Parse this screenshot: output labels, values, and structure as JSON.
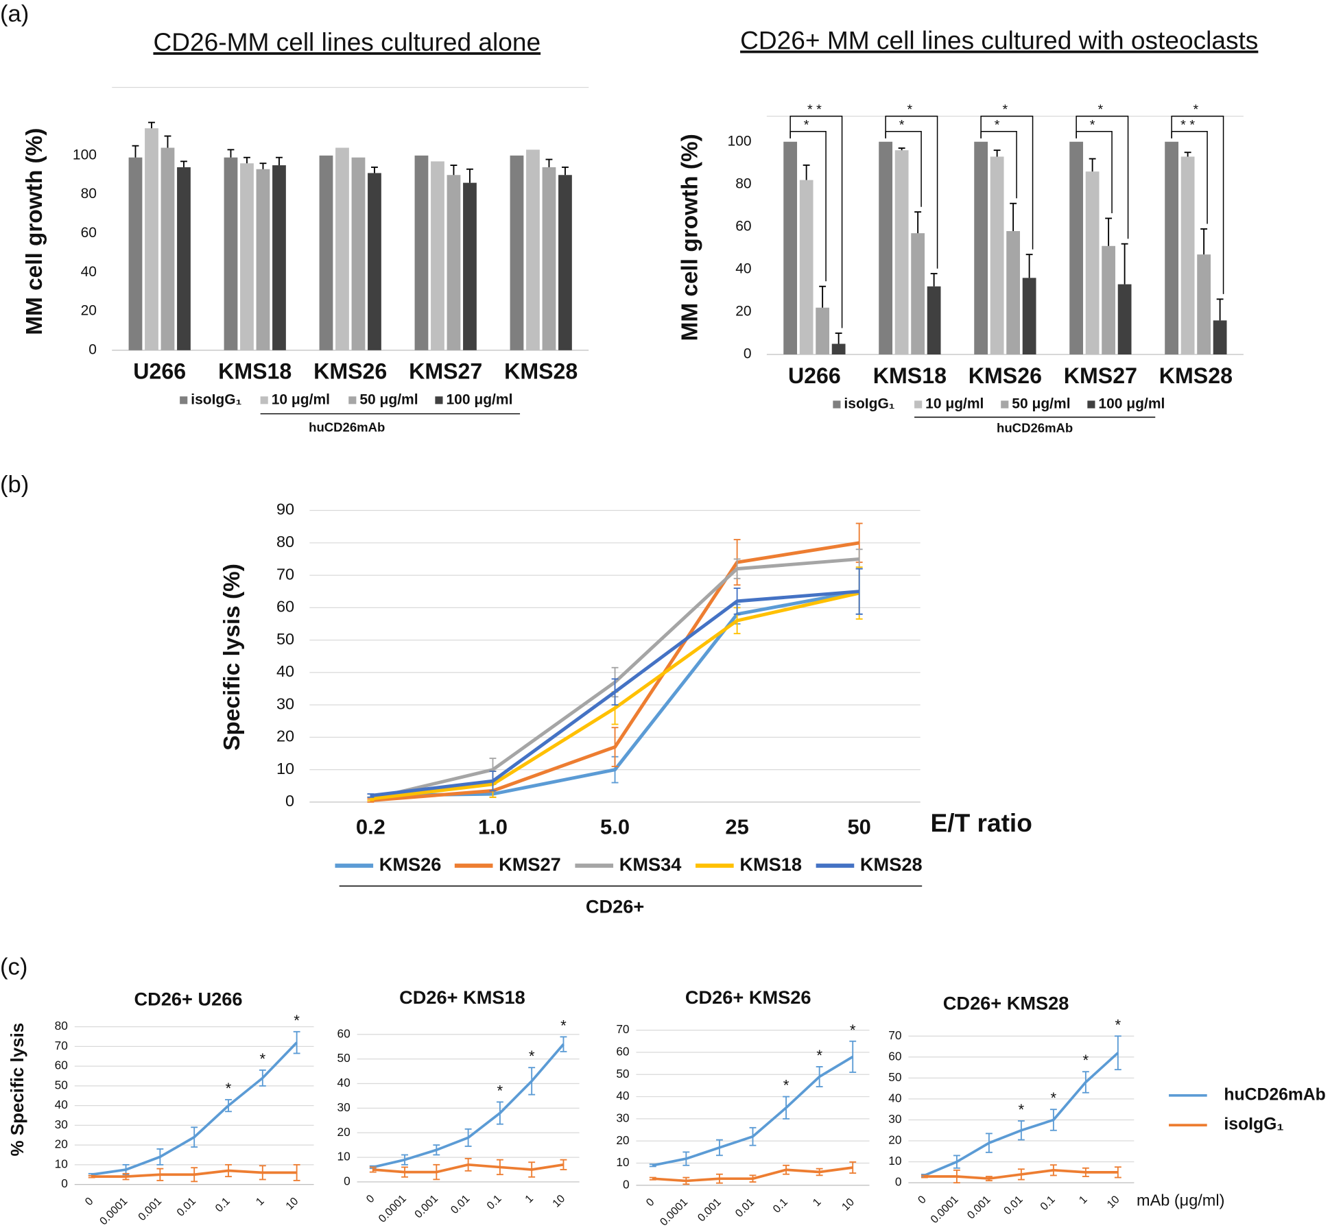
{
  "panel_labels": [
    "(a)",
    "(b)",
    "(c)"
  ],
  "chart_data": [
    {
      "type": "bar",
      "title": "CD26-MM cell lines cultured alone",
      "y_label": "MM cell growth (%)",
      "categories": [
        "U266",
        "KMS18",
        "KMS26",
        "KMS27",
        "KMS28"
      ],
      "series": [
        {
          "name": "isoIgG₁",
          "color": "#7f7f7f",
          "values": [
            99,
            99,
            100,
            100,
            100
          ],
          "errors": [
            6,
            4,
            0,
            0,
            0
          ]
        },
        {
          "name": "10 μg/ml",
          "color": "#bfbfbf",
          "values": [
            114,
            96,
            104,
            97,
            103
          ],
          "errors": [
            3,
            3,
            0,
            0,
            0
          ]
        },
        {
          "name": "50 μg/ml",
          "color": "#a6a6a6",
          "values": [
            104,
            93,
            99,
            90,
            94
          ],
          "errors": [
            6,
            3,
            0,
            5,
            4
          ]
        },
        {
          "name": "100 μg/ml",
          "color": "#404040",
          "values": [
            94,
            95,
            91,
            86,
            90
          ],
          "errors": [
            3,
            4,
            3,
            7,
            4
          ]
        }
      ],
      "group_label": "huCD26mAb",
      "ylim": [
        0,
        135
      ],
      "yticks": [
        0,
        20,
        40,
        60,
        80,
        100
      ],
      "grid": false
    },
    {
      "type": "bar",
      "title": "CD26+ MM cell lines cultured with osteoclasts",
      "y_label": "MM cell growth (%)",
      "categories": [
        "U266",
        "KMS18",
        "KMS26",
        "KMS27",
        "KMS28"
      ],
      "series": [
        {
          "name": "isoIgG₁",
          "color": "#7f7f7f",
          "values": [
            100,
            100,
            100,
            100,
            100
          ],
          "errors": [
            0,
            0,
            0,
            0,
            0
          ]
        },
        {
          "name": "10 μg/ml",
          "color": "#bfbfbf",
          "values": [
            82,
            96,
            93,
            86,
            93
          ],
          "errors": [
            7,
            1,
            3,
            6,
            2
          ]
        },
        {
          "name": "50 μg/ml",
          "color": "#a6a6a6",
          "values": [
            22,
            57,
            58,
            51,
            47
          ],
          "errors": [
            10,
            10,
            13,
            13,
            12
          ]
        },
        {
          "name": "100 μg/ml",
          "color": "#404040",
          "values": [
            5,
            32,
            36,
            33,
            16
          ],
          "errors": [
            5,
            6,
            11,
            19,
            10
          ]
        }
      ],
      "group_label": "huCD26mAb",
      "significance": [
        {
          "top": "* *",
          "bottom": "*"
        },
        {
          "top": "*",
          "bottom": "*"
        },
        {
          "top": "*",
          "bottom": "*"
        },
        {
          "top": "*",
          "bottom": "*"
        },
        {
          "top": "*",
          "bottom": "* *"
        }
      ],
      "ylim": [
        0,
        112
      ],
      "yticks": [
        0,
        20,
        40,
        60,
        80,
        100
      ],
      "grid": false
    },
    {
      "type": "line",
      "y_label": "Specific lysis (%)",
      "x_label": "E/T ratio",
      "group_label": "CD26+",
      "categories": [
        "0.2",
        "1.0",
        "5.0",
        "25",
        "50"
      ],
      "series": [
        {
          "name": "KMS26",
          "color": "#5b9bd5",
          "values": [
            2,
            2.5,
            10,
            58,
            65
          ],
          "errors": [
            0.5,
            1,
            4,
            3,
            7
          ]
        },
        {
          "name": "KMS27",
          "color": "#ed7d31",
          "values": [
            0.5,
            3.5,
            17,
            74,
            80
          ],
          "errors": [
            0.5,
            2,
            6,
            7,
            6
          ]
        },
        {
          "name": "KMS34",
          "color": "#a5a5a5",
          "values": [
            1,
            10,
            37,
            72,
            75
          ],
          "errors": [
            0.5,
            3.5,
            4.5,
            3,
            3
          ]
        },
        {
          "name": "KMS18",
          "color": "#ffc000",
          "values": [
            1,
            5.5,
            29,
            56,
            64.5
          ],
          "errors": [
            0.5,
            4,
            5,
            4,
            8
          ]
        },
        {
          "name": "KMS28",
          "color": "#4472c4",
          "values": [
            2,
            6.5,
            34,
            62,
            65
          ],
          "errors": [
            0.5,
            3,
            4,
            4,
            7
          ]
        }
      ],
      "ylim": [
        0,
        90
      ],
      "yticks": [
        0,
        10,
        20,
        30,
        40,
        50,
        60,
        70,
        80,
        90
      ],
      "grid": true
    },
    {
      "type": "line",
      "title": "CD26+ U266",
      "y_label": "% Specific lysis",
      "categories": [
        "0",
        "0.0001",
        "0.001",
        "0.01",
        "0.1",
        "1",
        "10"
      ],
      "series": [
        {
          "color": "#5b9bd5",
          "values": [
            5,
            7.5,
            14,
            24,
            40,
            54,
            72
          ],
          "errors": [
            0.5,
            2.5,
            4,
            5,
            3,
            4,
            5.5
          ]
        },
        {
          "color": "#ed7d31",
          "values": [
            4,
            4,
            5,
            5,
            7,
            6,
            6
          ],
          "errors": [
            0.5,
            1.5,
            3,
            3.5,
            3,
            3.5,
            4
          ]
        }
      ],
      "significance": [
        null,
        null,
        null,
        null,
        "*",
        "*",
        "*"
      ],
      "ylim": [
        0,
        80
      ],
      "yticks": [
        0,
        10,
        20,
        30,
        40,
        50,
        60,
        70,
        80
      ],
      "grid": true
    },
    {
      "type": "line",
      "title": "CD26+ KMS18",
      "categories": [
        "0",
        "0.0001",
        "0.001",
        "0.01",
        "0.1",
        "1",
        "10"
      ],
      "series": [
        {
          "color": "#5b9bd5",
          "values": [
            6,
            9,
            13,
            18,
            28,
            41,
            56
          ],
          "errors": [
            0.5,
            2,
            2,
            3.5,
            4.5,
            5.5,
            3
          ]
        },
        {
          "color": "#ed7d31",
          "values": [
            5,
            4,
            4,
            7,
            6,
            5,
            7
          ],
          "errors": [
            1,
            2,
            3,
            2.5,
            3,
            3,
            2
          ]
        }
      ],
      "significance": [
        null,
        null,
        null,
        null,
        "*",
        "*",
        "*"
      ],
      "ylim": [
        0,
        60
      ],
      "yticks": [
        0,
        10,
        20,
        30,
        40,
        50,
        60
      ],
      "grid": true
    },
    {
      "type": "line",
      "title": "CD26+ KMS26",
      "categories": [
        "0",
        "0.0001",
        "0.001",
        "0.01",
        "0.1",
        "1",
        "10"
      ],
      "series": [
        {
          "color": "#5b9bd5",
          "values": [
            9,
            12,
            17,
            22,
            35,
            49,
            58
          ],
          "errors": [
            0.5,
            3,
            3.5,
            4,
            5,
            4.5,
            7
          ]
        },
        {
          "color": "#ed7d31",
          "values": [
            3,
            2,
            3,
            3,
            7,
            6,
            8
          ],
          "errors": [
            0.5,
            1.5,
            2,
            1.5,
            2,
            1.5,
            2.5
          ]
        }
      ],
      "significance": [
        null,
        null,
        null,
        null,
        "*",
        "*",
        "*"
      ],
      "ylim": [
        0,
        70
      ],
      "yticks": [
        0,
        10,
        20,
        30,
        40,
        50,
        60,
        70
      ],
      "grid": true
    },
    {
      "type": "line",
      "title": "CD26+ KMS28",
      "x_label": "mAb (μg/ml)",
      "categories": [
        "0",
        "0.0001",
        "0.001",
        "0.01",
        "0.1",
        "1",
        "10"
      ],
      "series": [
        {
          "name": "huCD26mAb",
          "color": "#5b9bd5",
          "values": [
            3.5,
            10,
            19,
            25,
            30,
            48,
            62
          ],
          "errors": [
            0.5,
            3,
            4.5,
            4.5,
            5,
            5,
            8
          ]
        },
        {
          "name": "isoIgG₁",
          "color": "#ed7d31",
          "values": [
            3,
            3,
            2,
            4,
            6,
            5,
            5
          ],
          "errors": [
            0.5,
            3,
            1,
            2.5,
            2.5,
            2,
            2.5
          ]
        }
      ],
      "significance": [
        null,
        null,
        null,
        "*",
        "*",
        "*",
        "*"
      ],
      "ylim": [
        0,
        70
      ],
      "yticks": [
        0,
        10,
        20,
        30,
        40,
        50,
        60,
        70
      ],
      "grid": true
    }
  ]
}
